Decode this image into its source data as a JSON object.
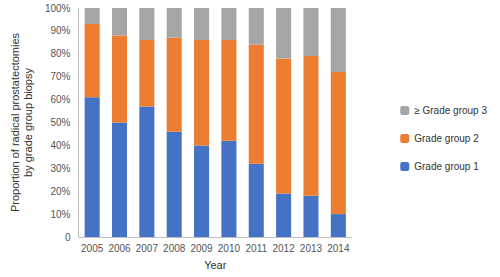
{
  "chart_data": {
    "type": "bar",
    "stacked": true,
    "grid": false,
    "legend": "right",
    "x_label": "Year",
    "y_label": "Proportion of radical prostatectomies\nby grade group biopsy",
    "categories": [
      "2005",
      "2006",
      "2007",
      "2008",
      "2009",
      "2010",
      "2011",
      "2012",
      "2013",
      "2014"
    ],
    "series": [
      {
        "name": "Grade group 1",
        "color": "#4472c4",
        "values": [
          61,
          50,
          57,
          46,
          40,
          42,
          32,
          19,
          18,
          10
        ]
      },
      {
        "name": "Grade group 2",
        "color": "#ed7d31",
        "values": [
          32,
          38,
          29,
          41,
          46,
          44,
          52,
          59,
          61,
          62
        ]
      },
      {
        "name": "≥ Grade group 3",
        "color": "#a5a5a5",
        "values": [
          7,
          12,
          14,
          13,
          14,
          14,
          16,
          22,
          21,
          28
        ]
      }
    ],
    "ylim": [
      0,
      100
    ],
    "yticks": [
      0,
      {
        "value": 10,
        "label": "10%"
      },
      {
        "value": 20,
        "label": "20%"
      },
      {
        "value": 30,
        "label": "30%"
      },
      {
        "value": 40,
        "label": "40%"
      },
      {
        "value": 50,
        "label": "50%"
      },
      {
        "value": 60,
        "label": "60%"
      },
      {
        "value": 70,
        "label": "70%"
      },
      {
        "value": 80,
        "label": "80%"
      },
      {
        "value": 90,
        "label": "90%"
      },
      {
        "value": 100,
        "label": "100%"
      }
    ]
  }
}
